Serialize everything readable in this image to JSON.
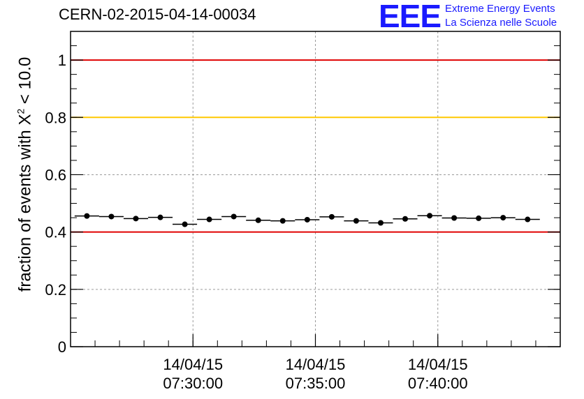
{
  "header": {
    "title": "CERN-02-2015-04-14-00034",
    "logo": "EEE",
    "logo_line1": "Extreme Energy Events",
    "logo_line2": "La Scienza nelle Scuole"
  },
  "colors": {
    "red_line": "#e00000",
    "orange_line": "#ffc800",
    "grid": "#9a9a9a",
    "points": "#000000",
    "logo": "#1a1aff"
  },
  "chart_data": {
    "type": "scatter",
    "title": "CERN-02-2015-04-14-00034",
    "ylabel_prefix": "fraction of events with X",
    "ylabel_sup": "2",
    "ylabel_suffix": " < 10.0",
    "ylim": [
      0,
      1.1
    ],
    "yticks": [
      "0",
      "0.2",
      "0.4",
      "0.6",
      "0.8",
      "1"
    ],
    "ytick_values": [
      0,
      0.2,
      0.4,
      0.6,
      0.8,
      1.0
    ],
    "xlim": [
      "07:25:00",
      "07:45:00"
    ],
    "xticks": [
      {
        "date": "14/04/15",
        "time": "07:30:00"
      },
      {
        "date": "14/04/15",
        "time": "07:35:00"
      },
      {
        "date": "14/04/15",
        "time": "07:40:00"
      }
    ],
    "grid": true,
    "reference_lines": [
      {
        "y": 1.0,
        "color": "#e00000"
      },
      {
        "y": 0.8,
        "color": "#ffc800"
      },
      {
        "y": 0.4,
        "color": "#e00000"
      }
    ],
    "series": [
      {
        "x": [
          "07:25:40",
          "07:26:40",
          "07:27:40",
          "07:28:40",
          "07:29:40",
          "07:30:40",
          "07:31:40",
          "07:32:40",
          "07:33:40",
          "07:34:40",
          "07:35:40",
          "07:36:40",
          "07:37:40",
          "07:38:40",
          "07:39:40",
          "07:40:40",
          "07:41:40",
          "07:42:40",
          "07:43:40"
        ],
        "y": [
          0.456,
          0.454,
          0.447,
          0.451,
          0.427,
          0.444,
          0.454,
          0.441,
          0.439,
          0.443,
          0.453,
          0.439,
          0.432,
          0.446,
          0.457,
          0.449,
          0.448,
          0.45,
          0.444
        ],
        "bin_width_s": 60
      }
    ]
  }
}
